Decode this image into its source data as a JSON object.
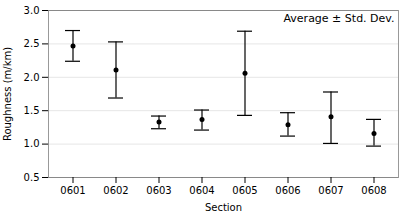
{
  "chart_data": {
    "type": "errorbar",
    "title": "Average ± Std. Dev.",
    "xlabel": "Section",
    "ylabel": "Roughness (m/km)",
    "categories": [
      "0601",
      "0602",
      "0603",
      "0604",
      "0605",
      "0606",
      "0607",
      "0608"
    ],
    "values": [
      2.47,
      2.11,
      1.33,
      1.37,
      2.06,
      1.29,
      1.41,
      1.16
    ],
    "highs": [
      2.7,
      2.53,
      1.42,
      1.51,
      2.69,
      1.47,
      1.78,
      1.37
    ],
    "lows": [
      2.24,
      1.69,
      1.23,
      1.21,
      1.43,
      1.12,
      1.01,
      0.97
    ],
    "ylim": [
      0.5,
      3.0
    ],
    "yticks": [
      0.5,
      {
        "value": 1.0,
        "label": "1.0"
      },
      1.5,
      {
        "value": 2.0,
        "label": "2.0"
      },
      2.5,
      {
        "value": 3.0,
        "label": "3.0"
      }
    ],
    "grid": true
  }
}
